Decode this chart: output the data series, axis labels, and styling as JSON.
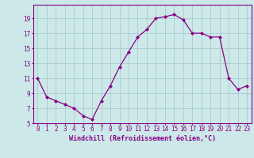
{
  "x": [
    0,
    1,
    2,
    3,
    4,
    5,
    6,
    7,
    8,
    9,
    10,
    11,
    12,
    13,
    14,
    15,
    16,
    17,
    18,
    19,
    20,
    21,
    22,
    23
  ],
  "y": [
    11,
    8.5,
    8.0,
    7.5,
    7.0,
    6.0,
    5.5,
    8.0,
    10.0,
    12.5,
    14.5,
    16.5,
    17.5,
    19.0,
    19.2,
    19.5,
    18.8,
    17.0,
    17.0,
    16.5,
    16.5,
    11.0,
    9.5,
    10.0
  ],
  "xlabel": "Windchill (Refroidissement éolien,°C)",
  "ylim": [
    5,
    20
  ],
  "xlim": [
    -0.5,
    23.5
  ],
  "yticks": [
    5,
    7,
    9,
    11,
    13,
    15,
    17,
    19
  ],
  "xticks": [
    0,
    1,
    2,
    3,
    4,
    5,
    6,
    7,
    8,
    9,
    10,
    11,
    12,
    13,
    14,
    15,
    16,
    17,
    18,
    19,
    20,
    21,
    22,
    23
  ],
  "line_color": "#880088",
  "marker": "D",
  "marker_size": 2.0,
  "bg_color": "#cce8e8",
  "grid_color": "#aacccc",
  "xlabel_fontsize": 6.0,
  "tick_fontsize": 5.5,
  "linewidth": 0.9
}
